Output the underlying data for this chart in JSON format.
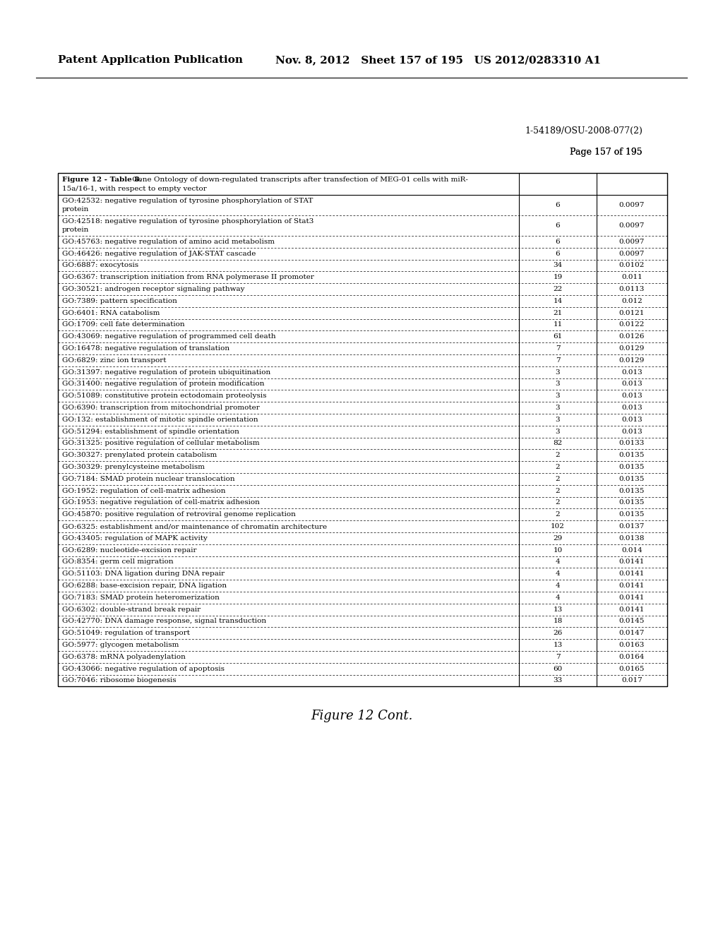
{
  "page_header_left": "Patent Application Publication",
  "page_header_middle": "Nov. 8, 2012   Sheet 157 of 195   US 2012/0283310 A1",
  "page_ref_line1": "1-54189/OSU-2008-077(2)",
  "page_ref_line2": "Page 157 of 195",
  "table_title_line1": "Figure 12 - Table 8. Gene Ontology of down-regulated transcripts after transfection of MEG-01 cells with miR-",
  "table_title_line2": "15a/16-1, with respect to empty vector",
  "figure_caption": "Figure 12 Cont.",
  "rows": [
    [
      "GO:42532: negative regulation of tyrosine phosphorylation of STAT\nprotein",
      "6",
      "0.0097"
    ],
    [
      "GO:42518: negative regulation of tyrosine phosphorylation of Stat3\nprotein",
      "6",
      "0.0097"
    ],
    [
      "GO:45763: negative regulation of amino acid metabolism",
      "6",
      "0.0097"
    ],
    [
      "GO:46426: negative regulation of JAK-STAT cascade",
      "6",
      "0.0097"
    ],
    [
      "GO:6887: exocytosis",
      "34",
      "0.0102"
    ],
    [
      "GO:6367: transcription initiation from RNA polymerase II promoter",
      "19",
      "0.011"
    ],
    [
      "GO:30521: androgen receptor signaling pathway",
      "22",
      "0.0113"
    ],
    [
      "GO:7389: pattern specification",
      "14",
      "0.012"
    ],
    [
      "GO:6401: RNA catabolism",
      "21",
      "0.0121"
    ],
    [
      "GO:1709: cell fate determination",
      "11",
      "0.0122"
    ],
    [
      "GO:43069: negative regulation of programmed cell death",
      "61",
      "0.0126"
    ],
    [
      "GO:16478: negative regulation of translation",
      "7",
      "0.0129"
    ],
    [
      "GO:6829: zinc ion transport",
      "7",
      "0.0129"
    ],
    [
      "GO:31397: negative regulation of protein ubiquitination",
      "3",
      "0.013"
    ],
    [
      "GO:31400: negative regulation of protein modification",
      "3",
      "0.013"
    ],
    [
      "GO:51089: constitutive protein ectodomain proteolysis",
      "3",
      "0.013"
    ],
    [
      "GO:6390: transcription from mitochondrial promoter",
      "3",
      "0.013"
    ],
    [
      "GO:132: establishment of mitotic spindle orientation",
      "3",
      "0.013"
    ],
    [
      "GO:51294: establishment of spindle orientation",
      "3",
      "0.013"
    ],
    [
      "GO:31325: positive regulation of cellular metabolism",
      "82",
      "0.0133"
    ],
    [
      "GO:30327: prenylated protein catabolism",
      "2",
      "0.0135"
    ],
    [
      "GO:30329: prenylcysteine metabolism",
      "2",
      "0.0135"
    ],
    [
      "GO:7184: SMAD protein nuclear translocation",
      "2",
      "0.0135"
    ],
    [
      "GO:1952: regulation of cell-matrix adhesion",
      "2",
      "0.0135"
    ],
    [
      "GO:1953: negative regulation of cell-matrix adhesion",
      "2",
      "0.0135"
    ],
    [
      "GO:45870: positive regulation of retroviral genome replication",
      "2",
      "0.0135"
    ],
    [
      "GO:6325: establishment and/or maintenance of chromatin architecture",
      "102",
      "0.0137"
    ],
    [
      "GO:43405: regulation of MAPK activity",
      "29",
      "0.0138"
    ],
    [
      "GO:6289: nucleotide-excision repair",
      "10",
      "0.014"
    ],
    [
      "GO:8354: germ cell migration",
      "4",
      "0.0141"
    ],
    [
      "GO:51103: DNA ligation during DNA repair",
      "4",
      "0.0141"
    ],
    [
      "GO:6288: base-excision repair, DNA ligation",
      "4",
      "0.0141"
    ],
    [
      "GO:7183: SMAD protein heteromerization",
      "4",
      "0.0141"
    ],
    [
      "GO:6302: double-strand break repair",
      "13",
      "0.0141"
    ],
    [
      "GO:42770: DNA damage response, signal transduction",
      "18",
      "0.0145"
    ],
    [
      "GO:51049: regulation of transport",
      "26",
      "0.0147"
    ],
    [
      "GO:5977: glycogen metabolism",
      "13",
      "0.0163"
    ],
    [
      "GO:6378: mRNA polyadenylation",
      "7",
      "0.0164"
    ],
    [
      "GO:43066: negative regulation of apoptosis",
      "60",
      "0.0165"
    ],
    [
      "GO:7046: ribosome biogenesis",
      "33",
      "0.017"
    ]
  ],
  "two_line_rows": [
    0,
    1
  ],
  "bg_color": "#ffffff",
  "text_color": "#000000",
  "header_fontsize": 11,
  "ref_fontsize": 9,
  "table_fontsize": 7.5,
  "title_fontsize": 7.5,
  "caption_fontsize": 13
}
